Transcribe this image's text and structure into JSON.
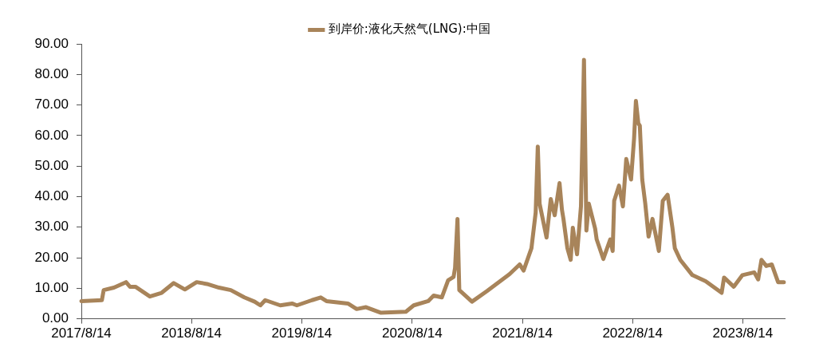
{
  "chart_data": {
    "type": "line",
    "legend": "top",
    "x": [
      "2017-08-14",
      "2017-10-21",
      "2017-10-27",
      "2017-11-30",
      "2018-01-09",
      "2018-01-22",
      "2018-02-09",
      "2018-03-29",
      "2018-05-07",
      "2018-06-16",
      "2018-07-23",
      "2018-08-31",
      "2018-10-04",
      "2018-11-13",
      "2018-12-22",
      "2019-02-05",
      "2019-03-11",
      "2019-03-30",
      "2019-04-15",
      "2019-06-04",
      "2019-07-13",
      "2019-07-29",
      "2019-09-17",
      "2019-10-16",
      "2019-11-04",
      "2020-01-14",
      "2020-02-12",
      "2020-03-14",
      "2020-05-01",
      "2020-07-24",
      "2020-08-19",
      "2020-10-06",
      "2020-10-24",
      "2020-11-20",
      "2020-12-11",
      "2020-12-29",
      "2021-01-03",
      "2021-01-11",
      "2021-01-17",
      "2021-02-28",
      "2021-04-19",
      "2021-07-02",
      "2021-08-05",
      "2021-08-18",
      "2021-09-13",
      "2021-09-27",
      "2021-10-04",
      "2021-10-10",
      "2021-11-02",
      "2021-11-16",
      "2021-11-29",
      "2021-12-15",
      "2021-12-23",
      "2021-12-28",
      "2022-01-10",
      "2022-01-21",
      "2022-01-28",
      "2022-02-11",
      "2022-02-24",
      "2022-03-01",
      "2022-03-06",
      "2022-03-14",
      "2022-03-22",
      "2022-04-12",
      "2022-04-17",
      "2022-05-09",
      "2022-06-01",
      "2022-06-09",
      "2022-06-14",
      "2022-06-30",
      "2022-07-13",
      "2022-07-24",
      "2022-08-09",
      "2022-08-19",
      "2022-08-25",
      "2022-09-02",
      "2022-09-07",
      "2022-09-15",
      "2022-09-25",
      "2022-10-06",
      "2022-10-19",
      "2022-11-09",
      "2022-11-22",
      "2022-12-08",
      "2022-12-24",
      "2023-01-01",
      "2023-01-19",
      "2023-02-28",
      "2023-04-13",
      "2023-06-05",
      "2023-06-13",
      "2023-07-15",
      "2023-08-13",
      "2023-09-21",
      "2023-10-04",
      "2023-10-15",
      "2023-10-31",
      "2023-11-18",
      "2023-12-09",
      "2023-12-28"
    ],
    "series": [
      {
        "name": "到岸价:液化天然气(LNG):中国",
        "color": "#a8845a",
        "values": [
          5.8,
          6.1,
          9.4,
          10.2,
          12.0,
          10.5,
          10.5,
          7.3,
          8.5,
          11.7,
          9.6,
          12.0,
          11.4,
          10.2,
          9.4,
          7.0,
          5.6,
          4.4,
          6.1,
          4.4,
          5.0,
          4.4,
          6.1,
          7.0,
          5.8,
          5.0,
          3.2,
          3.8,
          2.0,
          2.3,
          4.4,
          5.8,
          7.6,
          7.0,
          12.6,
          13.7,
          16.7,
          32.7,
          9.4,
          5.6,
          9.1,
          14.6,
          17.8,
          15.8,
          23.1,
          34.8,
          56.4,
          37.7,
          26.6,
          39.2,
          33.9,
          44.4,
          35.7,
          32.7,
          23.1,
          19.3,
          29.8,
          21.1,
          36.8,
          59.6,
          84.8,
          28.9,
          37.7,
          29.5,
          26.0,
          19.6,
          26.0,
          22.2,
          38.6,
          43.6,
          36.8,
          52.3,
          45.6,
          59.1,
          71.3,
          64.0,
          63.2,
          45.6,
          37.7,
          26.9,
          32.7,
          22.2,
          38.6,
          40.6,
          29.8,
          23.1,
          19.3,
          14.3,
          12.3,
          8.5,
          13.5,
          10.5,
          14.3,
          15.2,
          12.9,
          19.3,
          17.3,
          17.8,
          12.0,
          12.0
        ]
      }
    ],
    "xlim": [
      "2017-08-14",
      "2023-12-31"
    ],
    "xticks": [
      {
        "value": "2017-08-14",
        "label": "2017/8/14"
      },
      {
        "value": "2018-08-14",
        "label": "2018/8/14"
      },
      {
        "value": "2019-08-14",
        "label": "2019/8/14"
      },
      {
        "value": "2020-08-14",
        "label": "2020/8/14"
      },
      {
        "value": "2021-08-14",
        "label": "2021/8/14"
      },
      {
        "value": "2022-08-14",
        "label": "2022/8/14"
      },
      {
        "value": "2023-08-14",
        "label": "2023/8/14"
      }
    ],
    "ylim": [
      0,
      90
    ],
    "yticks": [
      {
        "value": 0,
        "label": "0.00"
      },
      {
        "value": 10,
        "label": "10.00"
      },
      {
        "value": 20,
        "label": "20.00"
      },
      {
        "value": 30,
        "label": "30.00"
      },
      {
        "value": 40,
        "label": "40.00"
      },
      {
        "value": 50,
        "label": "50.00"
      },
      {
        "value": 60,
        "label": "60.00"
      },
      {
        "value": 70,
        "label": "70.00"
      },
      {
        "value": 80,
        "label": "80.00"
      },
      {
        "value": 90,
        "label": "90.00"
      }
    ]
  }
}
